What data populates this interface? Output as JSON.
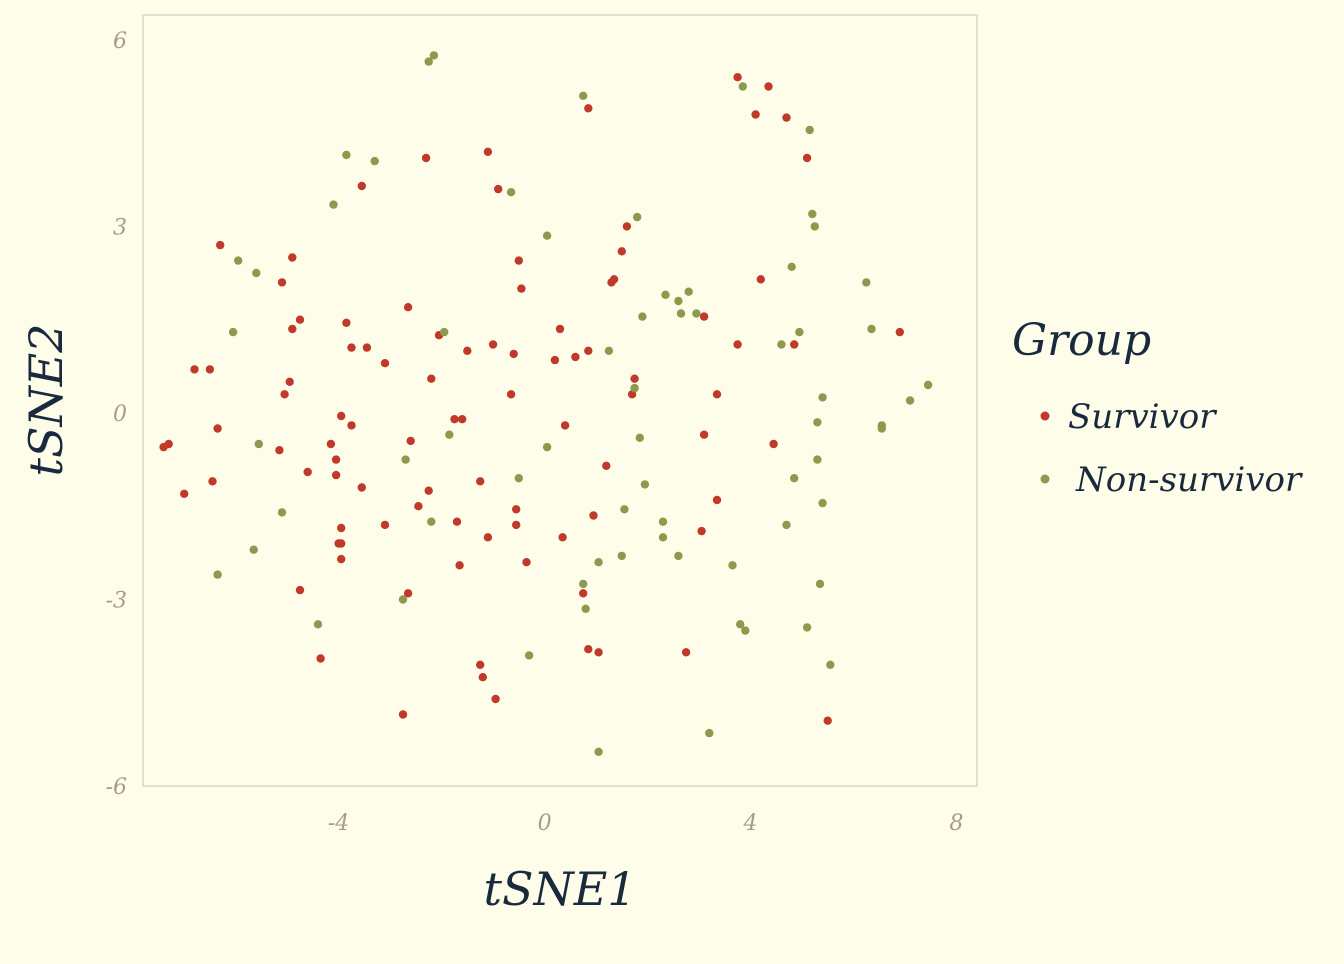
{
  "chart_data": {
    "type": "scatter",
    "xlabel": "tSNE1",
    "ylabel": "tSNE2",
    "xlim": [
      -7.8,
      8.4
    ],
    "ylim": [
      -6,
      6.4
    ],
    "xticks": [
      -4,
      0,
      4,
      8
    ],
    "yticks": [
      -6,
      -3,
      0,
      3,
      6
    ],
    "grid": false,
    "legend": {
      "title": "Group",
      "placement": "right"
    },
    "colors": {
      "background": "#fefde9",
      "panel_border": "#e8dec7",
      "Survivor": "#c0392b",
      "Non-survivor": "#8c9a4e"
    },
    "series": [
      {
        "name": "Survivor",
        "color": "#c0392b",
        "points": [
          [
            3.75,
            5.4
          ],
          [
            4.35,
            5.25
          ],
          [
            4.1,
            4.8
          ],
          [
            4.7,
            4.75
          ],
          [
            5.1,
            4.1
          ],
          [
            0.85,
            4.9
          ],
          [
            -2.3,
            4.1
          ],
          [
            -1.1,
            4.2
          ],
          [
            -3.55,
            3.65
          ],
          [
            -0.9,
            3.6
          ],
          [
            1.6,
            3.0
          ],
          [
            1.5,
            2.6
          ],
          [
            -6.3,
            2.7
          ],
          [
            -4.9,
            2.5
          ],
          [
            -0.5,
            2.45
          ],
          [
            -5.1,
            2.1
          ],
          [
            1.3,
            2.1
          ],
          [
            1.35,
            2.15
          ],
          [
            4.2,
            2.15
          ],
          [
            -0.45,
            2.0
          ],
          [
            -2.65,
            1.7
          ],
          [
            -4.75,
            1.5
          ],
          [
            -3.85,
            1.45
          ],
          [
            -4.9,
            1.35
          ],
          [
            0.3,
            1.35
          ],
          [
            -2.05,
            1.25
          ],
          [
            6.9,
            1.3
          ],
          [
            3.1,
            1.55
          ],
          [
            -3.75,
            1.05
          ],
          [
            -3.45,
            1.05
          ],
          [
            -1.5,
            1.0
          ],
          [
            -1.0,
            1.1
          ],
          [
            -0.6,
            0.95
          ],
          [
            0.85,
            1.0
          ],
          [
            0.6,
            0.9
          ],
          [
            0.2,
            0.85
          ],
          [
            3.75,
            1.1
          ],
          [
            4.85,
            1.1
          ],
          [
            -3.1,
            0.8
          ],
          [
            -6.8,
            0.7
          ],
          [
            -6.5,
            0.7
          ],
          [
            -2.2,
            0.55
          ],
          [
            -4.95,
            0.5
          ],
          [
            1.75,
            0.55
          ],
          [
            -5.05,
            0.3
          ],
          [
            -0.65,
            0.3
          ],
          [
            1.7,
            0.3
          ],
          [
            3.35,
            0.3
          ],
          [
            -3.95,
            -0.05
          ],
          [
            -3.75,
            -0.2
          ],
          [
            -1.75,
            -0.1
          ],
          [
            -1.6,
            -0.1
          ],
          [
            0.4,
            -0.2
          ],
          [
            -6.35,
            -0.25
          ],
          [
            -7.3,
            -0.5
          ],
          [
            -7.4,
            -0.55
          ],
          [
            -4.15,
            -0.5
          ],
          [
            -2.6,
            -0.45
          ],
          [
            3.1,
            -0.35
          ],
          [
            4.45,
            -0.5
          ],
          [
            -5.15,
            -0.6
          ],
          [
            -4.05,
            -0.75
          ],
          [
            1.2,
            -0.85
          ],
          [
            -4.6,
            -0.95
          ],
          [
            -4.05,
            -1.0
          ],
          [
            -1.25,
            -1.1
          ],
          [
            -6.45,
            -1.1
          ],
          [
            -7.0,
            -1.3
          ],
          [
            -3.55,
            -1.2
          ],
          [
            -2.25,
            -1.25
          ],
          [
            -0.55,
            -1.55
          ],
          [
            -2.45,
            -1.5
          ],
          [
            0.95,
            -1.65
          ],
          [
            -3.1,
            -1.8
          ],
          [
            -1.7,
            -1.75
          ],
          [
            -0.55,
            -1.8
          ],
          [
            -3.95,
            -1.85
          ],
          [
            3.05,
            -1.9
          ],
          [
            -3.95,
            -2.1
          ],
          [
            -4.0,
            -2.1
          ],
          [
            -1.1,
            -2.0
          ],
          [
            0.35,
            -2.0
          ],
          [
            3.35,
            -1.4
          ],
          [
            -3.95,
            -2.35
          ],
          [
            -1.65,
            -2.45
          ],
          [
            -0.35,
            -2.4
          ],
          [
            -4.75,
            -2.85
          ],
          [
            -2.65,
            -2.9
          ],
          [
            0.75,
            -2.9
          ],
          [
            0.85,
            -3.8
          ],
          [
            1.05,
            -3.85
          ],
          [
            2.75,
            -3.85
          ],
          [
            -4.35,
            -3.95
          ],
          [
            -1.25,
            -4.05
          ],
          [
            -1.2,
            -4.25
          ],
          [
            -0.95,
            -4.6
          ],
          [
            -2.75,
            -4.85
          ],
          [
            5.5,
            -4.95
          ]
        ]
      },
      {
        "name": "Non-survivor",
        "color": "#8c9a4e",
        "points": [
          [
            -2.25,
            5.65
          ],
          [
            -2.15,
            5.75
          ],
          [
            0.75,
            5.1
          ],
          [
            3.85,
            5.25
          ],
          [
            5.15,
            4.55
          ],
          [
            -3.85,
            4.15
          ],
          [
            -3.3,
            4.05
          ],
          [
            -0.65,
            3.55
          ],
          [
            -4.1,
            3.35
          ],
          [
            1.8,
            3.15
          ],
          [
            5.2,
            3.2
          ],
          [
            5.25,
            3.0
          ],
          [
            0.05,
            2.85
          ],
          [
            -5.95,
            2.45
          ],
          [
            -5.6,
            2.25
          ],
          [
            4.8,
            2.35
          ],
          [
            2.35,
            1.9
          ],
          [
            2.6,
            1.8
          ],
          [
            2.8,
            1.95
          ],
          [
            2.65,
            1.6
          ],
          [
            2.95,
            1.6
          ],
          [
            6.25,
            2.1
          ],
          [
            1.9,
            1.55
          ],
          [
            -6.05,
            1.3
          ],
          [
            -1.95,
            1.3
          ],
          [
            6.35,
            1.35
          ],
          [
            4.95,
            1.3
          ],
          [
            4.6,
            1.1
          ],
          [
            1.25,
            1.0
          ],
          [
            7.45,
            0.45
          ],
          [
            7.1,
            0.2
          ],
          [
            1.75,
            0.4
          ],
          [
            5.4,
            0.25
          ],
          [
            6.55,
            -0.2
          ],
          [
            6.55,
            -0.25
          ],
          [
            5.3,
            -0.15
          ],
          [
            -1.85,
            -0.35
          ],
          [
            1.85,
            -0.4
          ],
          [
            -5.55,
            -0.5
          ],
          [
            0.05,
            -0.55
          ],
          [
            -2.7,
            -0.75
          ],
          [
            5.3,
            -0.75
          ],
          [
            -0.5,
            -1.05
          ],
          [
            4.85,
            -1.05
          ],
          [
            1.95,
            -1.15
          ],
          [
            -5.1,
            -1.6
          ],
          [
            1.55,
            -1.55
          ],
          [
            -2.2,
            -1.75
          ],
          [
            2.3,
            -1.75
          ],
          [
            4.7,
            -1.8
          ],
          [
            5.4,
            -1.45
          ],
          [
            2.3,
            -2.0
          ],
          [
            -5.65,
            -2.2
          ],
          [
            1.5,
            -2.3
          ],
          [
            2.6,
            -2.3
          ],
          [
            1.05,
            -2.4
          ],
          [
            3.65,
            -2.45
          ],
          [
            -6.35,
            -2.6
          ],
          [
            0.75,
            -2.75
          ],
          [
            5.35,
            -2.75
          ],
          [
            -2.75,
            -3.0
          ],
          [
            0.8,
            -3.15
          ],
          [
            -4.4,
            -3.4
          ],
          [
            3.8,
            -3.4
          ],
          [
            3.9,
            -3.5
          ],
          [
            5.1,
            -3.45
          ],
          [
            -0.3,
            -3.9
          ],
          [
            5.55,
            -4.05
          ],
          [
            3.2,
            -5.15
          ],
          [
            1.05,
            -5.45
          ]
        ]
      }
    ]
  }
}
